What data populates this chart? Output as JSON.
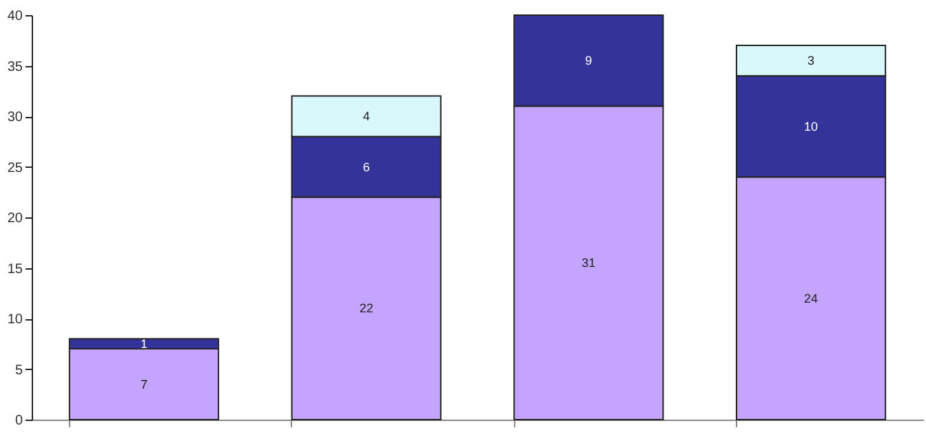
{
  "chart_data": {
    "type": "bar",
    "stacked": true,
    "categories": [
      null,
      null,
      null,
      null
    ],
    "series": [
      {
        "color": "#c4a4ff",
        "values": [
          7,
          22,
          31,
          24
        ]
      },
      {
        "color": "#333399",
        "values": [
          1,
          6,
          9,
          10
        ]
      },
      {
        "color": "#d9f8fc",
        "values": [
          null,
          4,
          null,
          3
        ]
      }
    ],
    "ylim": [
      0,
      40
    ],
    "yticks": [
      0,
      5,
      10,
      15,
      20,
      25,
      30,
      35,
      40
    ],
    "data_labels": true,
    "grid": false
  }
}
